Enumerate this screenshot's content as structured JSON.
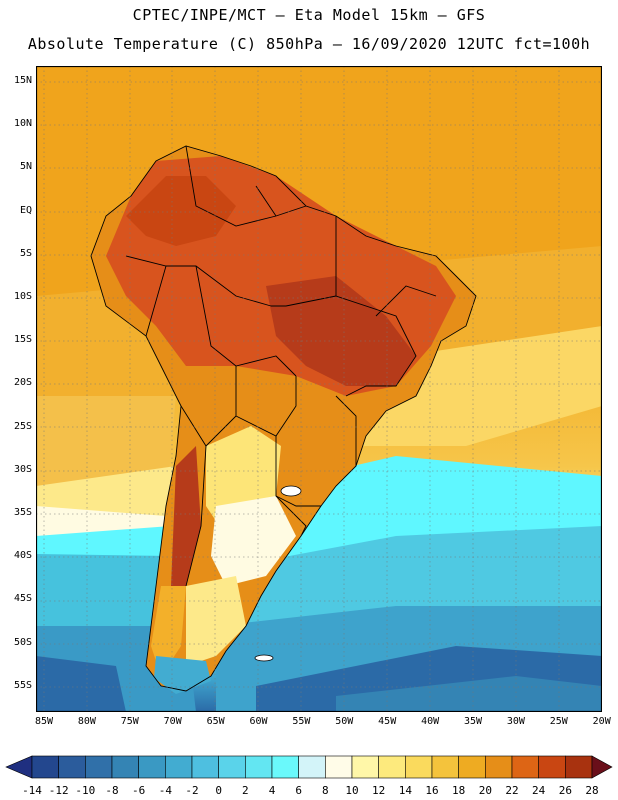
{
  "header": {
    "line1": "CPTEC/INPE/MCT –  Eta Model 15km – GFS",
    "line2": "Absolute Temperature (C) 850hPa – 16/09/2020 12UTC fct=100h"
  },
  "map": {
    "lat_labels": [
      "15N",
      "10N",
      "5N",
      "EQ",
      "5S",
      "10S",
      "15S",
      "20S",
      "25S",
      "30S",
      "35S",
      "40S",
      "45S",
      "50S",
      "55S"
    ],
    "lon_labels": [
      "85W",
      "80W",
      "75W",
      "70W",
      "65W",
      "60W",
      "55W",
      "50W",
      "45W",
      "40W",
      "35W",
      "30W",
      "25W",
      "20W"
    ],
    "temperature_bands": [
      {
        "name": "ocean-north-warm",
        "value_c": 20,
        "color": "#f0a41c"
      },
      {
        "name": "continent-hot",
        "value_c": 24,
        "color": "#d8541e"
      },
      {
        "name": "continent-very-hot",
        "value_c": 26,
        "color": "#b63b1a"
      },
      {
        "name": "subtropical-warm",
        "value_c": 14,
        "color": "#fde578"
      },
      {
        "name": "mid-latitude-cool",
        "value_c": 6,
        "color": "#fffbe2"
      },
      {
        "name": "cold-front",
        "value_c": 4,
        "color": "#5ff7ff"
      },
      {
        "name": "southern-ocean",
        "value_c": -2,
        "color": "#42b8d6"
      },
      {
        "name": "deep-cold",
        "value_c": -6,
        "color": "#2b6aa7"
      }
    ]
  },
  "colorbar": {
    "labels": [
      "-14",
      "-12",
      "-10",
      "-8",
      "-6",
      "-4",
      "-2",
      "0",
      "2",
      "4",
      "6",
      "8",
      "10",
      "12",
      "14",
      "16",
      "18",
      "20",
      "22",
      "24",
      "26",
      "28"
    ],
    "colors": [
      "#23478e",
      "#2b5c9c",
      "#3070a9",
      "#3484b4",
      "#3a99c3",
      "#42acd1",
      "#4ebfe0",
      "#5ad3ea",
      "#63e6f2",
      "#6af9fb",
      "#d3f4f9",
      "#fffce8",
      "#fff7a8",
      "#fdea7d",
      "#fada5d",
      "#f4c33c",
      "#eeab22",
      "#e68e18",
      "#dd6515",
      "#c94612",
      "#a8320f",
      "#852010"
    ],
    "low_end_color": "#1f2f80",
    "high_end_color": "#6a0f1a"
  }
}
